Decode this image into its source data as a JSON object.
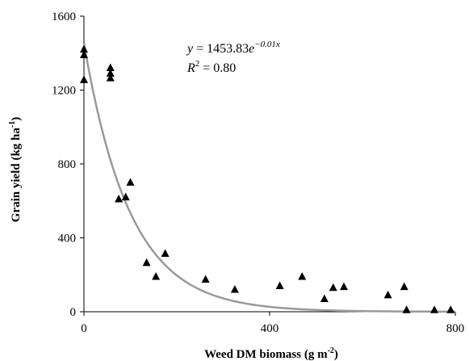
{
  "chart_data": {
    "type": "scatter",
    "xlabel": "Weed DM biomass (g m",
    "xlabel_sup": "-2",
    "xlabel_end": ")",
    "ylabel": "Grain yield (kg ha",
    "ylabel_sup": "-1",
    "ylabel_end": ")",
    "xlim": [
      0,
      800
    ],
    "ylim": [
      0,
      1600
    ],
    "xticks": [
      0,
      400,
      800
    ],
    "yticks": [
      0,
      400,
      800,
      1200,
      1600
    ],
    "grid": false,
    "legend": "none",
    "marker": "triangle",
    "marker_color": "#000000",
    "fit_color": "#999999",
    "series": [
      {
        "points": [
          {
            "x": 0,
            "y": 1420
          },
          {
            "x": 0,
            "y": 1390
          },
          {
            "x": 0,
            "y": 1255
          },
          {
            "x": 57,
            "y": 1320
          },
          {
            "x": 57,
            "y": 1290
          },
          {
            "x": 57,
            "y": 1265
          },
          {
            "x": 75,
            "y": 610
          },
          {
            "x": 90,
            "y": 620
          },
          {
            "x": 100,
            "y": 700
          },
          {
            "x": 135,
            "y": 265
          },
          {
            "x": 155,
            "y": 190
          },
          {
            "x": 175,
            "y": 315
          },
          {
            "x": 262,
            "y": 175
          },
          {
            "x": 325,
            "y": 120
          },
          {
            "x": 422,
            "y": 140
          },
          {
            "x": 470,
            "y": 190
          },
          {
            "x": 518,
            "y": 70
          },
          {
            "x": 537,
            "y": 130
          },
          {
            "x": 560,
            "y": 135
          },
          {
            "x": 655,
            "y": 90
          },
          {
            "x": 690,
            "y": 135
          },
          {
            "x": 695,
            "y": 10
          },
          {
            "x": 755,
            "y": 10
          },
          {
            "x": 790,
            "y": 10
          }
        ]
      }
    ],
    "fit": {
      "type": "exponential",
      "a": 1453.83,
      "b": -0.01
    },
    "annotation": {
      "eq_y": "y",
      "eq_eq": " = 1453.83",
      "eq_e": "e",
      "eq_exp": "−0.01x",
      "r2_r": "R",
      "r2_sup": "2",
      "r2_val": " = 0.80"
    }
  }
}
